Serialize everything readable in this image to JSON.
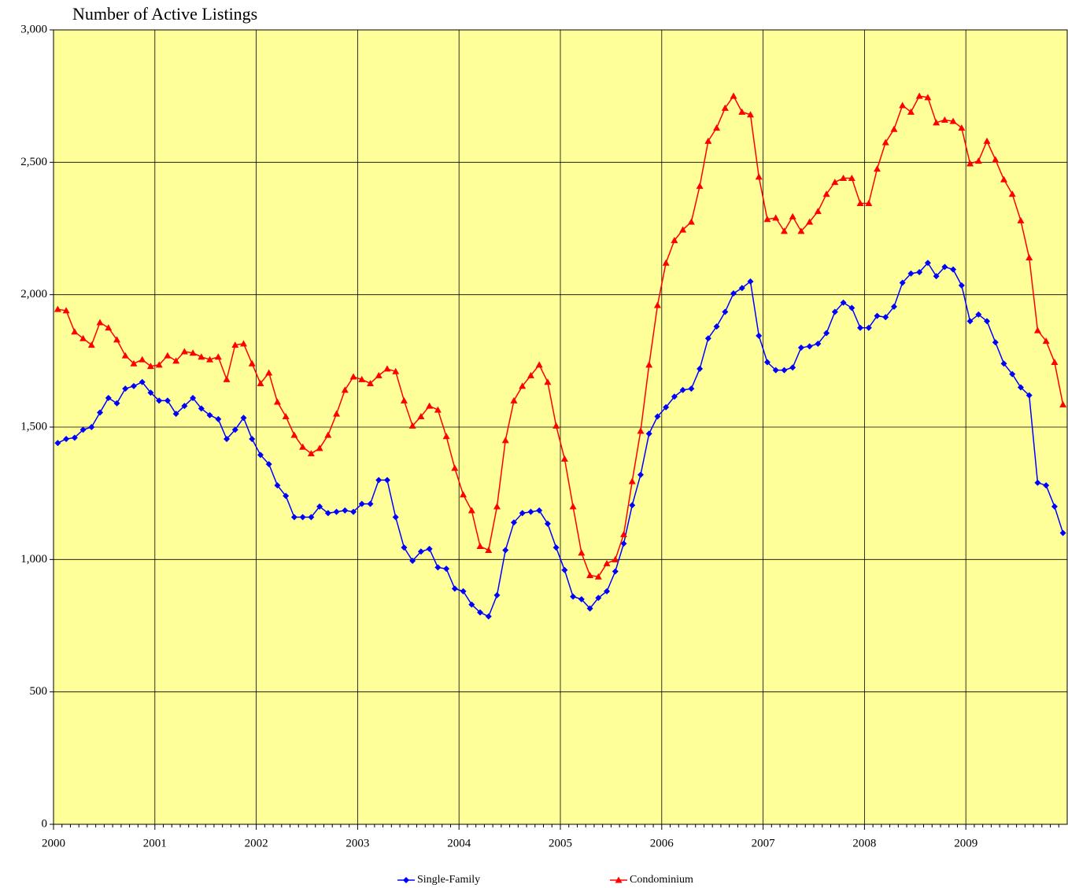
{
  "chart_data": {
    "type": "line",
    "title": "Number of Active Listings",
    "categories": [
      "2000",
      null,
      null,
      null,
      null,
      null,
      null,
      null,
      null,
      null,
      null,
      null,
      "2001",
      null,
      null,
      null,
      null,
      null,
      null,
      null,
      null,
      null,
      null,
      null,
      "2002",
      null,
      null,
      null,
      null,
      null,
      null,
      null,
      null,
      null,
      null,
      null,
      "2003",
      null,
      null,
      null,
      null,
      null,
      null,
      null,
      null,
      null,
      null,
      null,
      "2004",
      null,
      null,
      null,
      null,
      null,
      null,
      null,
      null,
      null,
      null,
      null,
      "2005",
      null,
      null,
      null,
      null,
      null,
      null,
      null,
      null,
      null,
      null,
      null,
      "2006",
      null,
      null,
      null,
      null,
      null,
      null,
      null,
      null,
      null,
      null,
      null,
      "2007",
      null,
      null,
      null,
      null,
      null,
      null,
      null,
      null,
      null,
      null,
      null,
      "2008",
      null,
      null,
      null,
      null,
      null,
      null,
      null,
      null,
      null,
      null,
      null,
      "2009",
      null,
      null,
      null,
      null,
      null,
      null,
      null,
      null,
      null,
      null,
      null
    ],
    "series": [
      {
        "name": "Single-Family",
        "color": "#0000ff",
        "marker": "diamond",
        "values": [
          1440,
          1455,
          1460,
          1490,
          1500,
          1555,
          1610,
          1590,
          1645,
          1655,
          1670,
          1630,
          1600,
          1600,
          1550,
          1580,
          1610,
          1570,
          1545,
          1530,
          1455,
          1490,
          1535,
          1455,
          1395,
          1360,
          1280,
          1240,
          1160,
          1160,
          1160,
          1200,
          1175,
          1180,
          1185,
          1180,
          1210,
          1210,
          1300,
          1300,
          1160,
          1045,
          995,
          1030,
          1040,
          970,
          965,
          890,
          880,
          830,
          800,
          785,
          865,
          1035,
          1140,
          1175,
          1180,
          1185,
          1135,
          1045,
          960,
          860,
          850,
          815,
          855,
          880,
          955,
          1060,
          1205,
          1320,
          1475,
          1540,
          1575,
          1615,
          1640,
          1645,
          1720,
          1835,
          1880,
          1935,
          2005,
          2025,
          2050,
          1845,
          1745,
          1715,
          1715,
          1725,
          1800,
          1805,
          1815,
          1855,
          1935,
          1970,
          1950,
          1875,
          1875,
          1920,
          1915,
          1955,
          2045,
          2080,
          2085,
          2120,
          2070,
          2105,
          2095,
          2035,
          1900,
          1925,
          1900,
          1820,
          1740,
          1700,
          1650,
          1620,
          1290,
          1280,
          1200,
          1100
        ]
      },
      {
        "name": "Condominium",
        "color": "#ff0000",
        "marker": "triangle",
        "values": [
          1945,
          1940,
          1860,
          1835,
          1810,
          1895,
          1875,
          1830,
          1770,
          1740,
          1755,
          1730,
          1735,
          1770,
          1750,
          1785,
          1780,
          1765,
          1755,
          1765,
          1680,
          1810,
          1815,
          1740,
          1665,
          1705,
          1595,
          1540,
          1470,
          1425,
          1400,
          1420,
          1470,
          1550,
          1640,
          1690,
          1680,
          1665,
          1695,
          1720,
          1710,
          1600,
          1505,
          1540,
          1580,
          1565,
          1465,
          1345,
          1245,
          1185,
          1050,
          1035,
          1200,
          1450,
          1600,
          1655,
          1695,
          1735,
          1670,
          1505,
          1380,
          1200,
          1025,
          940,
          935,
          985,
          1000,
          1095,
          1295,
          1485,
          1735,
          1960,
          2120,
          2205,
          2245,
          2275,
          2410,
          2580,
          2630,
          2705,
          2750,
          2690,
          2680,
          2445,
          2285,
          2290,
          2240,
          2295,
          2240,
          2275,
          2315,
          2380,
          2425,
          2440,
          2440,
          2345,
          2345,
          2475,
          2575,
          2625,
          2715,
          2690,
          2750,
          2745,
          2650,
          2660,
          2655,
          2630,
          2495,
          2505,
          2580,
          2510,
          2435,
          2380,
          2280,
          2140,
          1865,
          1825,
          1745,
          1585
        ]
      }
    ],
    "ylim": [
      0,
      3000
    ],
    "yticks": [
      0,
      500,
      {
        "value": 1000,
        "label": "1,000"
      },
      {
        "value": 1500,
        "label": "1,500"
      },
      {
        "value": 2000,
        "label": "2,000"
      },
      {
        "value": 2500,
        "label": "2,500"
      },
      {
        "value": 3000,
        "label": "3,000"
      }
    ],
    "grid": true,
    "background": "#ffff99",
    "legend": "bottom"
  }
}
